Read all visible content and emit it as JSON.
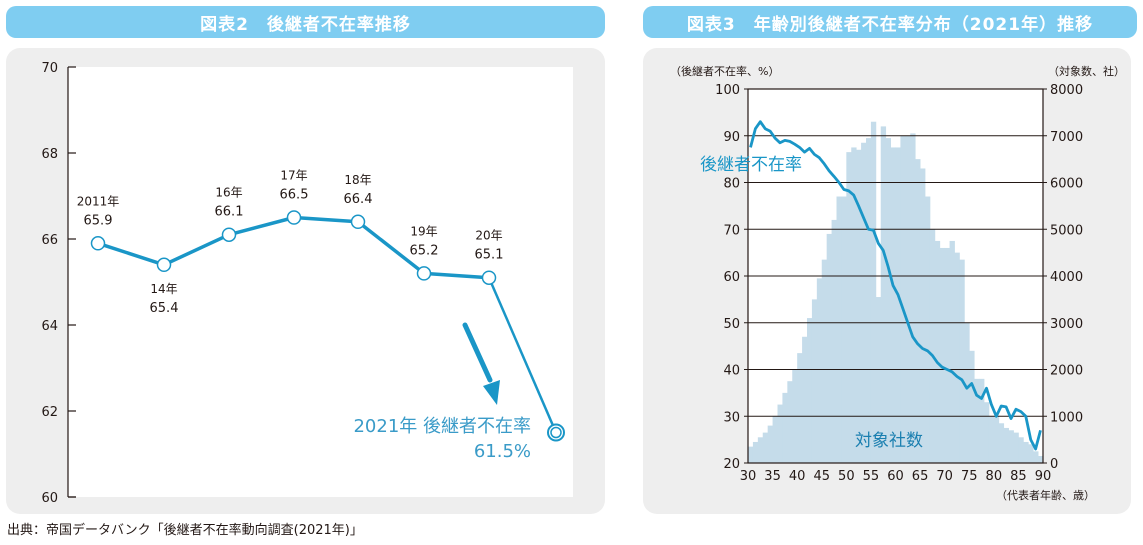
{
  "source_note": "出典：帝国データバンク「後継者不在率動向調査(2021年)」",
  "colors": {
    "banner": "#7fcdf1",
    "panel": "#eeeeee",
    "line": "#1a96c7",
    "bars": "#c5dcea",
    "highlight_text": "#3a9bc8",
    "axis": "#231815"
  },
  "chart_data": [
    {
      "type": "line",
      "title": "図表2　後継者不在率推移",
      "xlabel": "",
      "ylabel": "",
      "ylim": [
        60,
        70
      ],
      "yticks": [
        60,
        62,
        64,
        66,
        68,
        70
      ],
      "grid": false,
      "categories": [
        "2011年",
        "14年",
        "16年",
        "17年",
        "18年",
        "19年",
        "20年",
        "2021年"
      ],
      "values": [
        65.9,
        65.4,
        66.1,
        66.5,
        66.4,
        65.2,
        65.1,
        61.5
      ],
      "data_labels": [
        {
          "year": "2011年",
          "value": "65.9",
          "position": "above"
        },
        {
          "year": "14年",
          "value": "65.4",
          "position": "below"
        },
        {
          "year": "16年",
          "value": "66.1",
          "position": "above"
        },
        {
          "year": "17年",
          "value": "66.5",
          "position": "above"
        },
        {
          "year": "18年",
          "value": "66.4",
          "position": "above"
        },
        {
          "year": "19年",
          "value": "65.2",
          "position": "above"
        },
        {
          "year": "20年",
          "value": "65.1",
          "position": "above"
        }
      ],
      "annotation": {
        "line1": "2021年 後継者不在率",
        "line2": "61.5%"
      }
    },
    {
      "type": "bar+line",
      "title": "図表3　年齢別後継者不在率分布（2021年）推移",
      "xlabel": "（代表者年齢、歳）",
      "ylabel_left": "（後継者不在率、%）",
      "ylabel_right": "（対象数、社）",
      "xlim": [
        30,
        90
      ],
      "xticks": [
        30,
        35,
        40,
        45,
        50,
        55,
        60,
        65,
        70,
        75,
        80,
        85,
        90
      ],
      "ylim_left": [
        20,
        100
      ],
      "yticks_left": [
        20,
        30,
        40,
        50,
        60,
        70,
        80,
        90,
        100
      ],
      "ylim_right": [
        0,
        8000
      ],
      "yticks_right": [
        0,
        1000,
        2000,
        3000,
        4000,
        5000,
        6000,
        7000,
        8000
      ],
      "grid": true,
      "ages": [
        30,
        31,
        32,
        33,
        34,
        35,
        36,
        37,
        38,
        39,
        40,
        41,
        42,
        43,
        44,
        45,
        46,
        47,
        48,
        49,
        50,
        51,
        52,
        53,
        54,
        55,
        56,
        57,
        58,
        59,
        60,
        61,
        62,
        63,
        64,
        65,
        66,
        67,
        68,
        69,
        70,
        71,
        72,
        73,
        74,
        75,
        76,
        77,
        78,
        79,
        80,
        81,
        82,
        83,
        84,
        85,
        86,
        87,
        88,
        89
      ],
      "series": [
        {
          "name": "対象社数",
          "type": "bar",
          "axis": "right",
          "values": [
            350,
            450,
            550,
            650,
            800,
            1000,
            1250,
            1500,
            1750,
            2000,
            2350,
            2700,
            3100,
            3500,
            3950,
            4350,
            4900,
            5200,
            5700,
            5700,
            6650,
            6750,
            6700,
            6850,
            6950,
            7300,
            3550,
            7200,
            6950,
            6750,
            6750,
            7000,
            7000,
            7050,
            6500,
            6300,
            5700,
            5000,
            4750,
            4600,
            4600,
            4750,
            4500,
            4350,
            3000,
            2400,
            1800,
            1800,
            1300,
            1000,
            1000,
            850,
            750,
            700,
            650,
            550,
            450,
            400,
            250,
            150
          ]
        },
        {
          "name": "後継者不在率",
          "type": "line",
          "axis": "left",
          "values": [
            87.5,
            91.5,
            93,
            91.5,
            91,
            89.5,
            88.5,
            89,
            88.8,
            88.2,
            87.5,
            86.5,
            87.3,
            86,
            85.3,
            84,
            82.5,
            81.3,
            80,
            78.5,
            78.2,
            77.3,
            75,
            72.5,
            70,
            69.8,
            67,
            65.5,
            62,
            58,
            56,
            53,
            50,
            47,
            45.5,
            44.5,
            44,
            43,
            41.5,
            40.5,
            40,
            39.5,
            38.5,
            37.8,
            36,
            37,
            34.5,
            33.8,
            36,
            32.5,
            30,
            32.2,
            32,
            29.5,
            31.5,
            31,
            30,
            25,
            23,
            27
          ]
        }
      ],
      "labels": {
        "rate_label": "後継者不在率",
        "count_label": "対象社数"
      }
    }
  ]
}
